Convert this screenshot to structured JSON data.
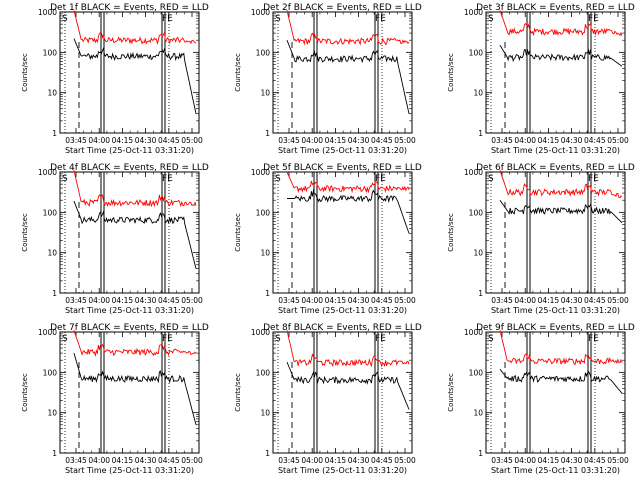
{
  "chart_data": [
    {
      "type": "line",
      "title": "Det 1f BLACK = Events, RED = LLD",
      "ylabel": "Counts/sec",
      "xlabel": "Start Time (25-Oct-11 03:31:20)",
      "x_ticks": [
        "03:45",
        "04:00",
        "04:15",
        "04:30",
        "04:45",
        "05:00"
      ],
      "y_ticks": [
        "1",
        "10",
        "100",
        "1000"
      ],
      "yscale": "log",
      "ylim": [
        1,
        1000
      ],
      "markers": {
        "left_letter": "S",
        "right_letters": "FE"
      },
      "series": [
        {
          "color": "#ff0000",
          "level": 200,
          "start": 1100,
          "end": 180
        },
        {
          "color": "#000000",
          "level": 80,
          "start": 220,
          "end": 3
        }
      ]
    },
    {
      "type": "line",
      "title": "Det 2f BLACK = Events, RED = LLD",
      "ylabel": "Counts/sec",
      "xlabel": "Start Time (25-Oct-11 03:31:20)",
      "x_ticks": [
        "03:45",
        "04:00",
        "04:15",
        "04:30",
        "04:45",
        "05:00"
      ],
      "y_ticks": [
        "1",
        "10",
        "100",
        "1000"
      ],
      "yscale": "log",
      "ylim": [
        1,
        1000
      ],
      "markers": {
        "left_letter": "S",
        "right_letters": "FE"
      },
      "series": [
        {
          "color": "#ff0000",
          "level": 190,
          "start": 1100,
          "end": 170
        },
        {
          "color": "#000000",
          "level": 70,
          "start": 200,
          "end": 3
        }
      ]
    },
    {
      "type": "line",
      "title": "Det 3f BLACK = Events, RED = LLD",
      "ylabel": "Counts/sec",
      "xlabel": "Start Time (25-Oct-11 03:31:20)",
      "x_ticks": [
        "03:45",
        "04:00",
        "04:15",
        "04:30",
        "04:45",
        "05:00"
      ],
      "y_ticks": [
        "1",
        "10",
        "100",
        "1000"
      ],
      "yscale": "log",
      "ylim": [
        1,
        1000
      ],
      "markers": {
        "left_letter": "S",
        "right_letters": "FE"
      },
      "series": [
        {
          "color": "#ff0000",
          "level": 330,
          "start": 1100,
          "end": 270
        },
        {
          "color": "#000000",
          "level": 75,
          "start": 150,
          "end": 45
        }
      ]
    },
    {
      "type": "line",
      "title": "Det 4f BLACK = Events, RED = LLD",
      "ylabel": "Counts/sec",
      "xlabel": "Start Time (25-Oct-11 03:31:20)",
      "x_ticks": [
        "03:45",
        "04:00",
        "04:15",
        "04:30",
        "04:45",
        "05:00"
      ],
      "y_ticks": [
        "1",
        "10",
        "100",
        "1000"
      ],
      "yscale": "log",
      "ylim": [
        1,
        1000
      ],
      "markers": {
        "left_letter": "S",
        "right_letters": "FE"
      },
      "series": [
        {
          "color": "#ff0000",
          "level": 175,
          "start": 1100,
          "end": 160
        },
        {
          "color": "#000000",
          "level": 65,
          "start": 190,
          "end": 4
        }
      ]
    },
    {
      "type": "line",
      "title": "Det 5f BLACK = Events, RED = LLD",
      "ylabel": "Counts/sec",
      "xlabel": "Start Time (25-Oct-11 03:31:20)",
      "x_ticks": [
        "03:45",
        "04:00",
        "04:15",
        "04:30",
        "04:45",
        "05:00"
      ],
      "y_ticks": [
        "1",
        "10",
        "100",
        "1000"
      ],
      "yscale": "log",
      "ylim": [
        1,
        1000
      ],
      "markers": {
        "left_letter": "S",
        "right_letters": "FE"
      },
      "series": [
        {
          "color": "#ff0000",
          "level": 390,
          "start": 1000,
          "end": 390
        },
        {
          "color": "#000000",
          "level": 220,
          "start": 220,
          "end": 30
        }
      ]
    },
    {
      "type": "line",
      "title": "Det 6f BLACK = Events, RED = LLD",
      "ylabel": "Counts/sec",
      "xlabel": "Start Time (25-Oct-11 03:31:20)",
      "x_ticks": [
        "03:45",
        "04:00",
        "04:15",
        "04:30",
        "04:45",
        "05:00"
      ],
      "y_ticks": [
        "1",
        "10",
        "100",
        "1000"
      ],
      "yscale": "log",
      "ylim": [
        1,
        1000
      ],
      "markers": {
        "left_letter": "S",
        "right_letters": "FE"
      },
      "series": [
        {
          "color": "#ff0000",
          "level": 320,
          "start": 1100,
          "end": 240
        },
        {
          "color": "#000000",
          "level": 110,
          "start": 200,
          "end": 55
        }
      ]
    },
    {
      "type": "line",
      "title": "Det 7f BLACK = Events, RED = LLD",
      "ylabel": "Counts/sec",
      "xlabel": "Start Time (25-Oct-11 03:31:20)",
      "x_ticks": [
        "03:45",
        "04:00",
        "04:15",
        "04:30",
        "04:45",
        "05:00"
      ],
      "y_ticks": [
        "1",
        "10",
        "100",
        "1000"
      ],
      "yscale": "log",
      "ylim": [
        1,
        1000
      ],
      "markers": {
        "left_letter": "S",
        "right_letters": "FE"
      },
      "series": [
        {
          "color": "#ff0000",
          "level": 320,
          "start": 1100,
          "end": 300
        },
        {
          "color": "#000000",
          "level": 70,
          "start": 300,
          "end": 5
        }
      ]
    },
    {
      "type": "line",
      "title": "Det 8f BLACK = Events, RED = LLD",
      "ylabel": "Counts/sec",
      "xlabel": "Start Time (25-Oct-11 03:31:20)",
      "x_ticks": [
        "03:45",
        "04:00",
        "04:15",
        "04:30",
        "04:45",
        "05:00"
      ],
      "y_ticks": [
        "1",
        "10",
        "100",
        "1000"
      ],
      "yscale": "log",
      "ylim": [
        1,
        1000
      ],
      "markers": {
        "left_letter": "S",
        "right_letters": "FE"
      },
      "series": [
        {
          "color": "#ff0000",
          "level": 175,
          "start": 1100,
          "end": 170
        },
        {
          "color": "#000000",
          "level": 65,
          "start": 180,
          "end": 12
        }
      ]
    },
    {
      "type": "line",
      "title": "Det 9f BLACK = Events, RED = LLD",
      "ylabel": "Counts/sec",
      "xlabel": "Start Time (25-Oct-11 03:31:20)",
      "x_ticks": [
        "03:45",
        "04:00",
        "04:15",
        "04:30",
        "04:45",
        "05:00"
      ],
      "y_ticks": [
        "1",
        "10",
        "100",
        "1000"
      ],
      "yscale": "log",
      "ylim": [
        1,
        1000
      ],
      "markers": {
        "left_letter": "S",
        "right_letters": "FE"
      },
      "series": [
        {
          "color": "#ff0000",
          "level": 190,
          "start": 1100,
          "end": 190
        },
        {
          "color": "#000000",
          "level": 70,
          "start": 120,
          "end": 30
        }
      ]
    }
  ]
}
